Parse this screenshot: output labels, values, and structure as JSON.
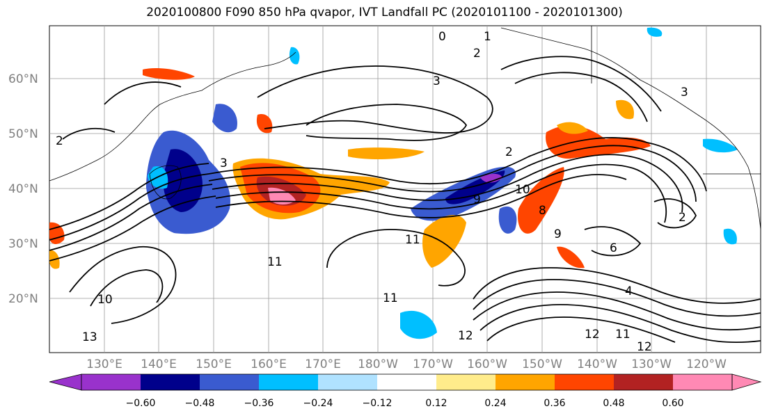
{
  "title": "2020100800 F090 850 hPa qvapor, IVT Landfall PC (2020101100 - 2020101300)",
  "lat_labels": [
    "60°N",
    "50°N",
    "40°N",
    "30°N",
    "20°N"
  ],
  "lon_labels": [
    "130°E",
    "140°E",
    "150°E",
    "160°E",
    "170°E",
    "180°W",
    "170°W",
    "160°W",
    "150°W",
    "140°W",
    "130°W",
    "120°W"
  ],
  "contour_labels": [
    "0",
    "1",
    "2",
    "3",
    "2",
    "2",
    "3",
    "10",
    "9",
    "8",
    "11",
    "9",
    "6",
    "4",
    "11",
    "12",
    "12",
    "11",
    "12",
    "13",
    "10",
    "11",
    "3",
    "2"
  ],
  "colorbar": {
    "tick_labels": [
      "−0.60",
      "−0.48",
      "−0.36",
      "−0.24",
      "−0.12",
      "0.12",
      "0.24",
      "0.36",
      "0.48",
      "0.60"
    ],
    "colors": [
      "#9932cc",
      "#00008b",
      "#3a5bd0",
      "#00bfff",
      "#b0e2ff",
      "#ffffff",
      "#ffec8b",
      "#ffa500",
      "#ff4500",
      "#b22222",
      "#ff89b4"
    ]
  }
}
